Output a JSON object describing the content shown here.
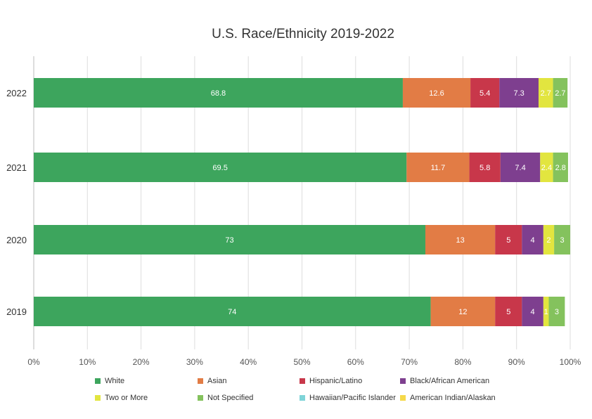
{
  "chart_data": {
    "type": "bar",
    "orientation": "horizontal",
    "stacked": true,
    "title": "U.S. Race/Ethnicity 2019-2022",
    "categories": [
      "2022",
      "2021",
      "2020",
      "2019"
    ],
    "xlim": [
      0,
      100
    ],
    "xticks": [
      "0%",
      "10%",
      "20%",
      "30%",
      "40%",
      "50%",
      "60%",
      "70%",
      "80%",
      "90%",
      "100%"
    ],
    "grid": "vertical",
    "legend_position": "bottom",
    "series": [
      {
        "name": "White",
        "color": "#3da55d",
        "values": [
          68.8,
          69.5,
          73,
          74
        ],
        "labels": [
          "68.8",
          "69.5",
          "73",
          "74"
        ]
      },
      {
        "name": "Asian",
        "color": "#e27c45",
        "values": [
          12.6,
          11.7,
          13,
          12
        ],
        "labels": [
          "12.6",
          "11.7",
          "13",
          "12"
        ]
      },
      {
        "name": "Hispanic/Latino",
        "color": "#c8374a",
        "values": [
          5.4,
          5.8,
          5,
          5
        ],
        "labels": [
          "5.4",
          "5.8",
          "5",
          "5"
        ]
      },
      {
        "name": "Black/African American",
        "color": "#7e3f8f",
        "values": [
          7.3,
          7.4,
          4,
          4
        ],
        "labels": [
          "7.3",
          "7.4",
          "4",
          "4"
        ]
      },
      {
        "name": "Two or More",
        "color": "#e2e53f",
        "values": [
          2.7,
          2.4,
          2,
          1
        ],
        "labels": [
          "2.7",
          "2.4",
          "2",
          "1"
        ]
      },
      {
        "name": "Not Specified",
        "color": "#84c25d",
        "values": [
          2.7,
          2.8,
          3,
          3
        ],
        "labels": [
          "2.7",
          "2.8",
          "3",
          "3"
        ]
      },
      {
        "name": "Hawaiian/Pacific Islander",
        "color": "#7fd4d8",
        "values": [
          0,
          0,
          0,
          0
        ],
        "labels": [
          "",
          "",
          "",
          ""
        ]
      },
      {
        "name": "American Indian/Alaskan",
        "color": "#f5d94a",
        "values": [
          0,
          0,
          0,
          0
        ],
        "labels": [
          "",
          "",
          "",
          ""
        ]
      }
    ]
  }
}
